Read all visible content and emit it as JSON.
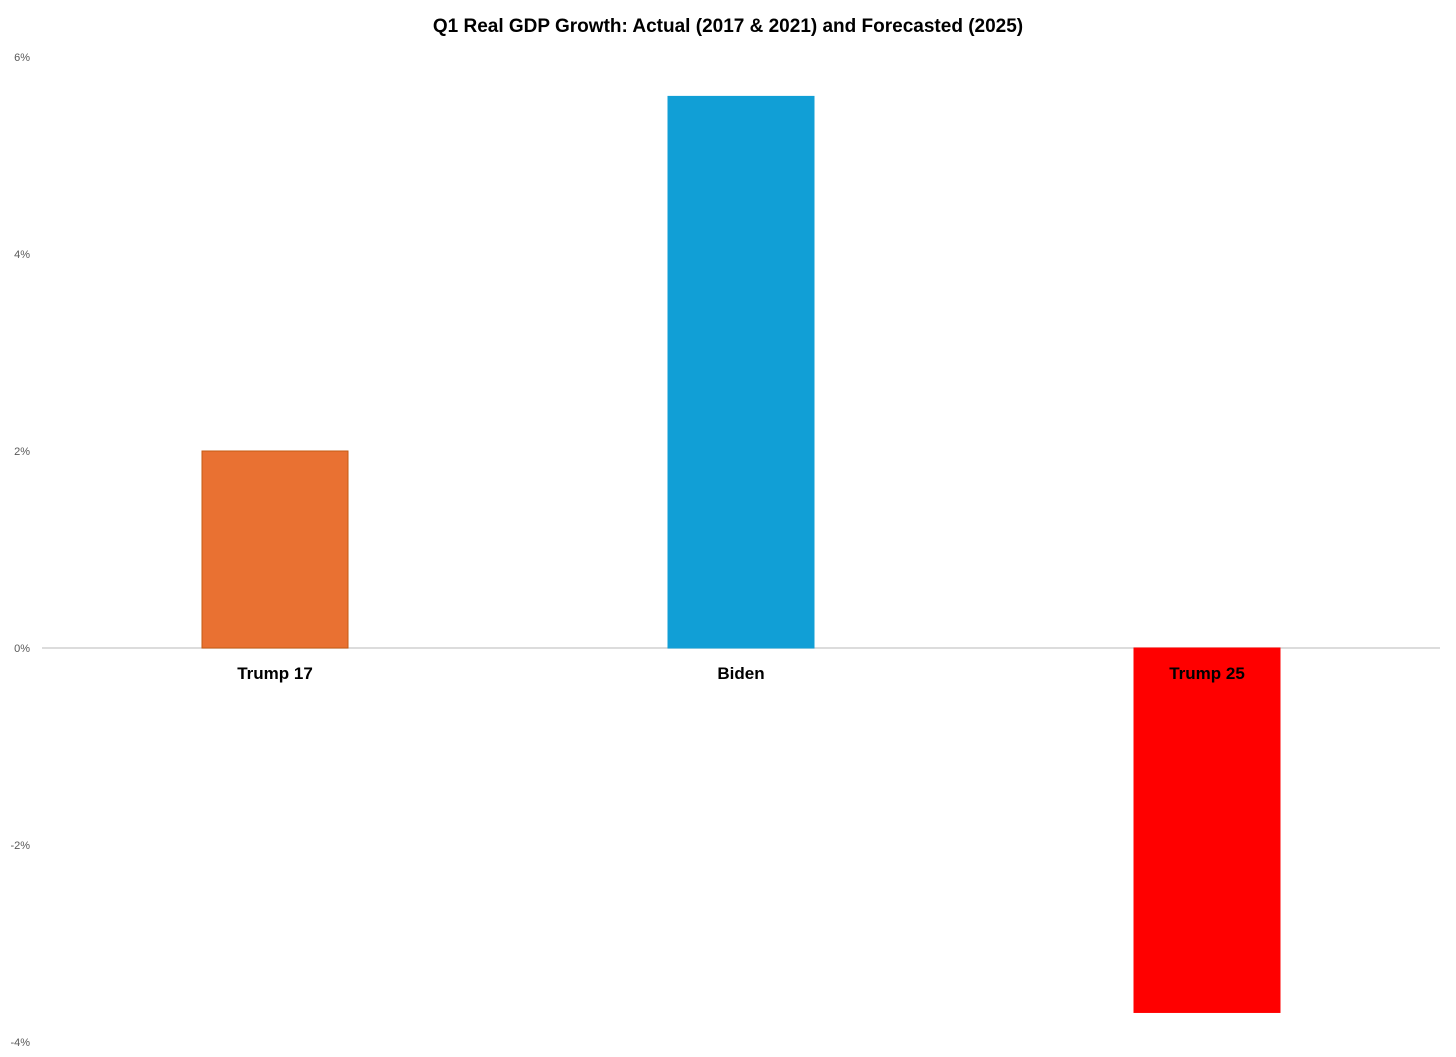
{
  "chart_data": {
    "type": "bar",
    "title": "Q1 Real GDP Growth: Actual (2017 & 2021) and Forecasted (2025)",
    "xlabel": "",
    "ylabel": "",
    "categories": [
      "Trump 17",
      "Biden",
      "Trump 25"
    ],
    "values": [
      2.0,
      5.6,
      -3.7
    ],
    "bar_colors": [
      "#E97132",
      "#119FD6",
      "#FF0000"
    ],
    "bar_edge_colors": [
      "#C55A11",
      "#119FD6",
      "#FF0000"
    ],
    "ylim": [
      -4,
      6
    ],
    "y_ticks": [
      -4,
      -2,
      0,
      2,
      4,
      6
    ],
    "y_tick_labels": [
      "-4%",
      "-2%",
      "0%",
      "2%",
      "4%",
      "6%"
    ],
    "grid": false,
    "legend": "none",
    "zero_line_color": "#D0D0D0"
  }
}
